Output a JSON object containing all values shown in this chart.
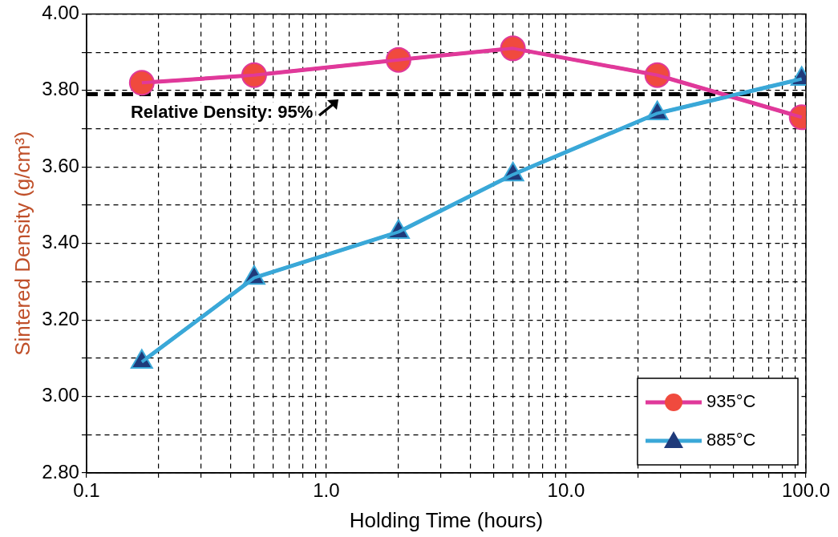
{
  "chart_data": {
    "type": "line",
    "xlabel": "Holding Time (hours)",
    "ylabel": "Sintered Density (g/cm³)",
    "log": "x",
    "x": [
      0.17,
      0.5,
      2,
      6,
      24,
      96
    ],
    "series": [
      {
        "name": "935°C",
        "color": "#e0399a",
        "marker": "circle",
        "values": [
          3.82,
          3.84,
          3.88,
          3.91,
          3.84,
          3.73
        ]
      },
      {
        "name": "885°C",
        "color": "#3aa8d8",
        "marker": "triangle",
        "values": [
          3.09,
          3.31,
          3.43,
          3.58,
          3.74,
          3.83
        ]
      }
    ],
    "xlim": [
      0.1,
      100
    ],
    "xticks": [
      {
        "value": 0.1,
        "label": "0.1"
      },
      {
        "value": 0.2,
        "label": null
      },
      {
        "value": 0.3,
        "label": null
      },
      {
        "value": 0.4,
        "label": null
      },
      {
        "value": 0.5,
        "label": null
      },
      {
        "value": 0.6,
        "label": null
      },
      {
        "value": 0.7,
        "label": null
      },
      {
        "value": 0.8,
        "label": null
      },
      {
        "value": 0.9,
        "label": null
      },
      {
        "value": 1,
        "label": "1.0"
      },
      {
        "value": 2,
        "label": null
      },
      {
        "value": 3,
        "label": null
      },
      {
        "value": 4,
        "label": null
      },
      {
        "value": 5,
        "label": null
      },
      {
        "value": 6,
        "label": null
      },
      {
        "value": 7,
        "label": null
      },
      {
        "value": 8,
        "label": null
      },
      {
        "value": 9,
        "label": null
      },
      {
        "value": 10,
        "label": "10.0"
      },
      {
        "value": 20,
        "label": null
      },
      {
        "value": 30,
        "label": null
      },
      {
        "value": 40,
        "label": null
      },
      {
        "value": 50,
        "label": null
      },
      {
        "value": 60,
        "label": null
      },
      {
        "value": 70,
        "label": null
      },
      {
        "value": 80,
        "label": null
      },
      {
        "value": 90,
        "label": null
      },
      {
        "value": 100,
        "label": "100.0"
      }
    ],
    "ylim": [
      2.8,
      4.0
    ],
    "yticks": [
      {
        "value": 2.8,
        "label": "2.80"
      },
      {
        "value": 2.9,
        "label": null
      },
      {
        "value": 3.0,
        "label": "3.00"
      },
      {
        "value": 3.1,
        "label": null
      },
      {
        "value": 3.2,
        "label": "3.20"
      },
      {
        "value": 3.3,
        "label": null
      },
      {
        "value": 3.4,
        "label": "3.40"
      },
      {
        "value": 3.5,
        "label": null
      },
      {
        "value": 3.6,
        "label": "3.60"
      },
      {
        "value": 3.7,
        "label": null
      },
      {
        "value": 3.8,
        "label": "3.80"
      },
      {
        "value": 3.9,
        "label": null
      },
      {
        "value": 4.0,
        "label": "4.00"
      }
    ],
    "grid": true,
    "legend": "bottom right",
    "line_style": "solid",
    "ref_lines": [
      {
        "axis": "y",
        "value": 3.79,
        "color": "#000000",
        "line_style": "dashed"
      }
    ],
    "annotations": [
      "Relative Density: 95%"
    ]
  }
}
